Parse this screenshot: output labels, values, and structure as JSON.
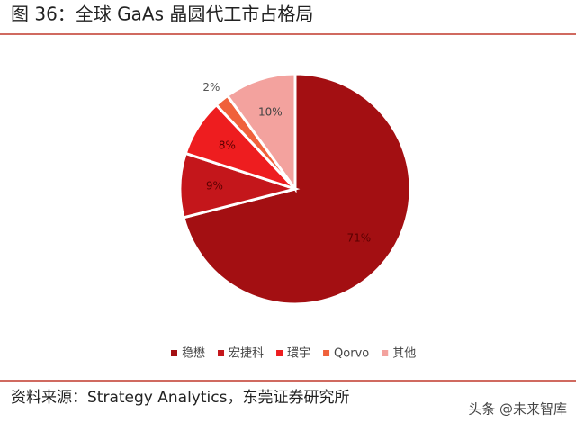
{
  "chart_data": {
    "type": "pie",
    "title": "图 36：全球 GaAs 晶圆代工市占格局",
    "categories": [
      "稳懋",
      "宏捷科",
      "環宇",
      "Qorvo",
      "其他"
    ],
    "values": [
      71,
      9,
      8,
      2,
      10
    ],
    "value_labels": [
      "71%",
      "9%",
      "8%",
      "2%",
      "10%"
    ],
    "colors": [
      "#a30f12",
      "#c4161b",
      "#ee1d1f",
      "#f0613b",
      "#f3a29e"
    ],
    "legend": "bottom",
    "source": "资料来源：Strategy Analytics，东莞证券研究所",
    "watermark": "头条 @未来智库"
  }
}
